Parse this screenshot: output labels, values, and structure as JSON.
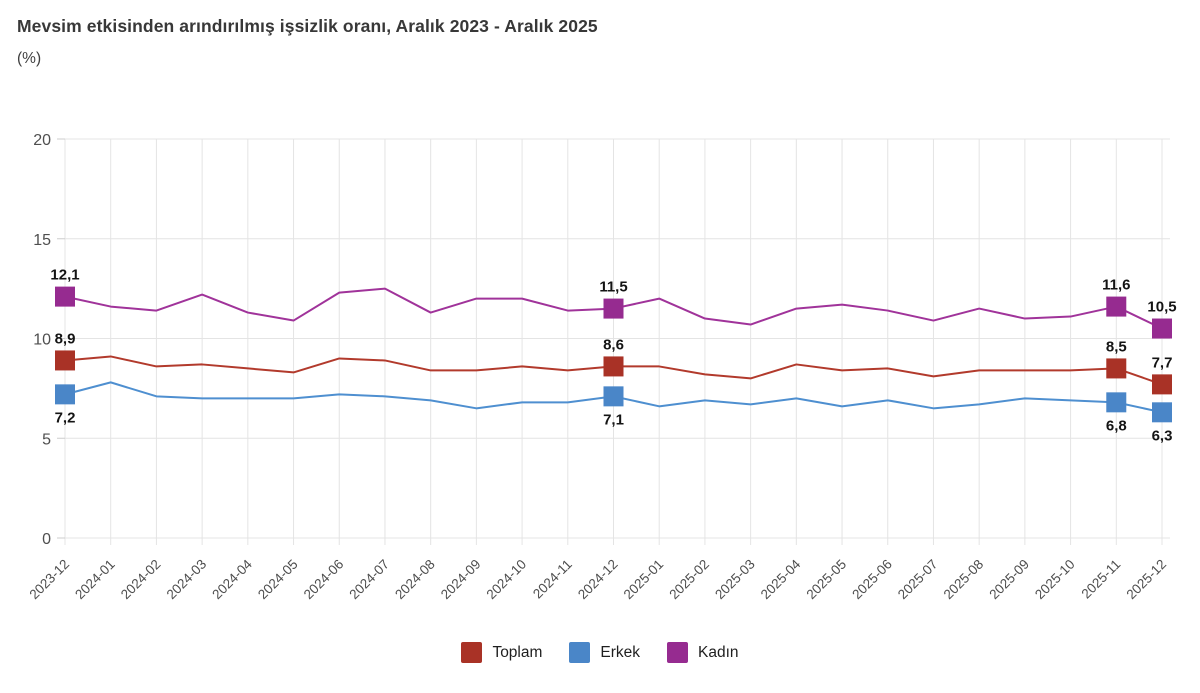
{
  "title": "Mevsim etkisinden arındırılmış işsizlik oranı, Aralık 2023 - Aralık 2025",
  "unit_label": "(%)",
  "colors": {
    "grid": "#e4e4e4",
    "tick": "#cccccc",
    "axis_text": "#4f4f4f",
    "value_label": "#141414",
    "title_text": "#383838",
    "toplam": "#a93226",
    "erkek": "#4a86c8",
    "kadin": "#962b90"
  },
  "chart_data": {
    "type": "line",
    "title": "Mevsim etkisinden arındırılmış işsizlik oranı, Aralık 2023 - Aralık 2025",
    "ylabel": "(%)",
    "xlabel": "",
    "ylim": [
      0,
      20
    ],
    "yticks": [
      0,
      5,
      10,
      15,
      20
    ],
    "grid": true,
    "legend_position": "bottom",
    "categories": [
      "2023-12",
      "2024-01",
      "2024-02",
      "2024-03",
      "2024-04",
      "2024-05",
      "2024-06",
      "2024-07",
      "2024-08",
      "2024-09",
      "2024-10",
      "2024-11",
      "2024-12",
      "2025-01",
      "2025-02",
      "2025-03",
      "2025-04",
      "2025-05",
      "2025-06",
      "2025-07",
      "2025-08",
      "2025-09",
      "2025-10",
      "2025-11",
      "2025-12"
    ],
    "series": [
      {
        "name": "Toplam",
        "color": "#a93226",
        "line_color": "#b23a2c",
        "label_side": "above",
        "values": [
          8.9,
          9.1,
          8.6,
          8.7,
          8.5,
          8.3,
          9.0,
          8.9,
          8.4,
          8.4,
          8.6,
          8.4,
          8.6,
          8.6,
          8.2,
          8.0,
          8.7,
          8.4,
          8.5,
          8.1,
          8.4,
          8.4,
          8.4,
          8.5,
          7.7
        ],
        "markers": [
          {
            "category": "2023-12",
            "label": "8,9"
          },
          {
            "category": "2024-12",
            "label": "8,6"
          },
          {
            "category": "2025-11",
            "label": "8,5"
          },
          {
            "category": "2025-12",
            "label": "7,7"
          }
        ]
      },
      {
        "name": "Erkek",
        "color": "#4a86c8",
        "line_color": "#4e8fd0",
        "label_side": "below",
        "values": [
          7.2,
          7.8,
          7.1,
          7.0,
          7.0,
          7.0,
          7.2,
          7.1,
          6.9,
          6.5,
          6.8,
          6.8,
          7.1,
          6.6,
          6.9,
          6.7,
          7.0,
          6.6,
          6.9,
          6.5,
          6.7,
          7.0,
          6.9,
          6.8,
          6.3
        ],
        "markers": [
          {
            "category": "2023-12",
            "label": "7,2"
          },
          {
            "category": "2024-12",
            "label": "7,1"
          },
          {
            "category": "2025-11",
            "label": "6,8"
          },
          {
            "category": "2025-12",
            "label": "6,3"
          }
        ]
      },
      {
        "name": "Kadın",
        "color": "#962b90",
        "line_color": "#a0339a",
        "label_side": "above",
        "values": [
          12.1,
          11.6,
          11.4,
          12.2,
          11.3,
          10.9,
          12.3,
          12.5,
          11.3,
          12.0,
          12.0,
          11.4,
          11.5,
          12.0,
          11.0,
          10.7,
          11.5,
          11.7,
          11.4,
          10.9,
          11.5,
          11.0,
          11.1,
          11.6,
          10.5
        ],
        "markers": [
          {
            "category": "2023-12",
            "label": "12,1"
          },
          {
            "category": "2024-12",
            "label": "11,5"
          },
          {
            "category": "2025-11",
            "label": "11,6"
          },
          {
            "category": "2025-12",
            "label": "10,5"
          }
        ]
      }
    ]
  }
}
